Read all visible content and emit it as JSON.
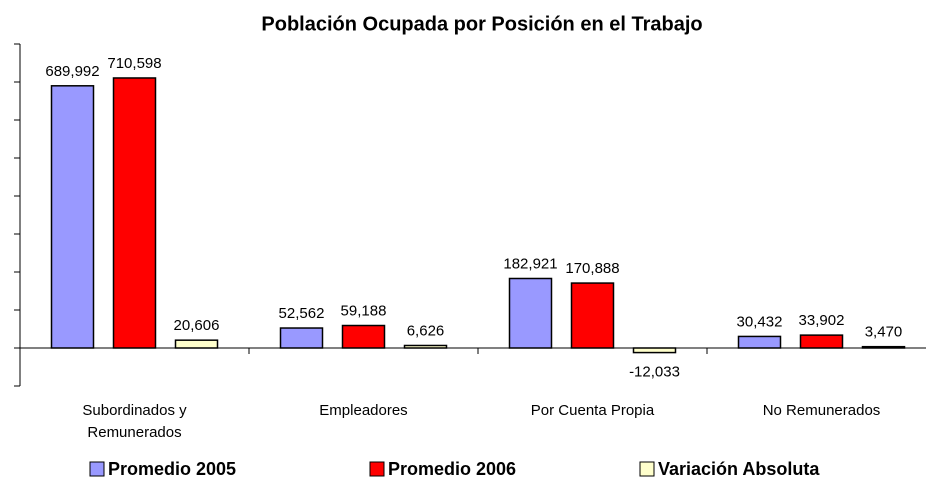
{
  "chart_data": {
    "type": "bar",
    "title": "Población Ocupada por Posición en el Trabajo",
    "categories": [
      "Subordinados y Remunerados",
      "Empleadores",
      "Por Cuenta Propia",
      "No Remunerados"
    ],
    "series": [
      {
        "name": "Promedio 2005",
        "color": "#9999ff",
        "values": [
          689992,
          52562,
          182921,
          30432
        ],
        "value_labels": [
          "689,992",
          "52,562",
          "182,921",
          "30,432"
        ]
      },
      {
        "name": "Promedio 2006",
        "color": "#ff0000",
        "values": [
          710598,
          59188,
          170888,
          33902
        ],
        "value_labels": [
          "710,598",
          "59,188",
          "170,888",
          "33,902"
        ]
      },
      {
        "name": "Variación Absoluta",
        "color": "#ffffcc",
        "values": [
          20606,
          6626,
          -12033,
          3470
        ],
        "value_labels": [
          "20,606",
          "6,626",
          "-12,033",
          "3,470"
        ]
      }
    ],
    "ylim": [
      -100000,
      800000
    ],
    "yticks": [
      -100000,
      0,
      100000,
      200000,
      300000,
      400000,
      500000,
      600000,
      700000,
      800000
    ],
    "legend": "bottom"
  }
}
